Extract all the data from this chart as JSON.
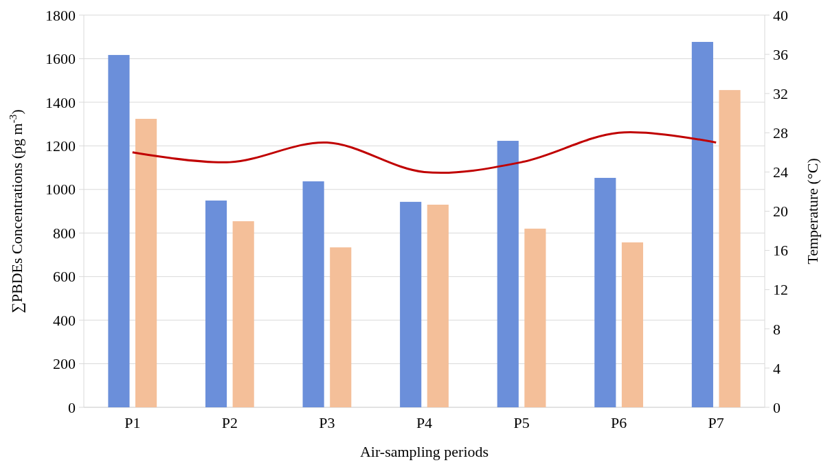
{
  "chart_data": {
    "type": "bar",
    "categories": [
      "P1",
      "P2",
      "P3",
      "P4",
      "P5",
      "P6",
      "P7"
    ],
    "series": [
      {
        "color": "#6b8fda",
        "values": [
          1617,
          949,
          1037,
          943,
          1223,
          1053,
          1677
        ]
      },
      {
        "color": "#f4bf99",
        "values": [
          1324,
          854,
          734,
          930,
          820,
          757,
          1456
        ]
      },
      {
        "type": "line",
        "axis": "y2",
        "color": "#c00000",
        "values": [
          26,
          25,
          27,
          24,
          25,
          28,
          27
        ]
      }
    ],
    "xlabel": "Air-sampling periods",
    "ylabel": "∑PBDEs Concentrations (pg m$^{-3}$)",
    "y2label": "Temperature (°C)",
    "ylim": [
      0,
      1800
    ],
    "yticks": [
      0,
      200,
      400,
      600,
      800,
      1000,
      1200,
      1400,
      1600,
      1800
    ],
    "y2lim": [
      0,
      40
    ],
    "y2ticks": [
      0,
      4,
      8,
      12,
      16,
      20,
      24,
      28,
      32,
      36,
      40
    ],
    "grid": "y"
  }
}
